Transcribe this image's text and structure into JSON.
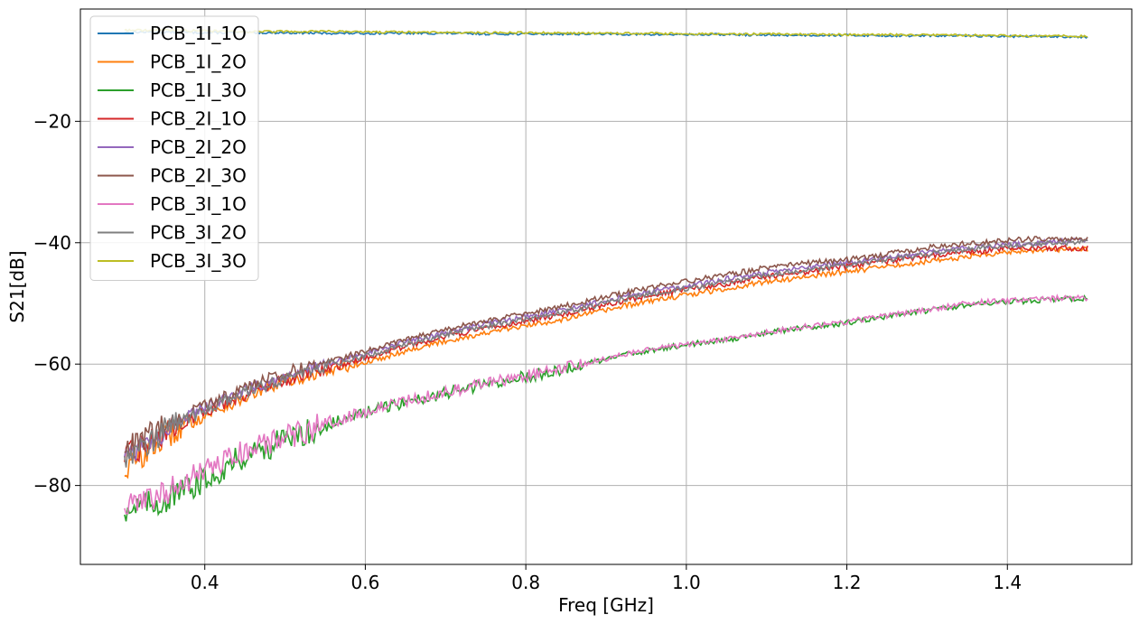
{
  "chart_data": {
    "type": "line",
    "xlabel": "Freq [GHz]",
    "ylabel": "S21[dB]",
    "xlim": [
      0.245,
      1.555
    ],
    "ylim": [
      -93,
      -1.5
    ],
    "xticks": [
      0.4,
      0.6,
      0.8,
      1.0,
      1.2,
      1.4
    ],
    "xtick_labels": [
      "0.4",
      "0.6",
      "0.8",
      "1.0",
      "1.2",
      "1.4"
    ],
    "yticks": [
      -20,
      -40,
      -60,
      -80
    ],
    "ytick_labels": [
      "−20",
      "−40",
      "−60",
      "−80"
    ],
    "grid": true,
    "legend_position": "top-left",
    "x": [
      0.3,
      0.35,
      0.4,
      0.45,
      0.5,
      0.55,
      0.6,
      0.65,
      0.7,
      0.75,
      0.8,
      0.85,
      0.9,
      0.95,
      1.0,
      1.05,
      1.1,
      1.15,
      1.2,
      1.25,
      1.3,
      1.35,
      1.4,
      1.45,
      1.5
    ],
    "series": [
      {
        "name": "PCB_1I_1O",
        "color": "#1f77b4",
        "values": [
          -5.3,
          -5.3,
          -5.4,
          -5.4,
          -5.4,
          -5.5,
          -5.5,
          -5.5,
          -5.5,
          -5.6,
          -5.6,
          -5.6,
          -5.6,
          -5.7,
          -5.7,
          -5.7,
          -5.8,
          -5.8,
          -5.8,
          -5.9,
          -5.9,
          -5.9,
          -6.0,
          -6.0,
          -6.1
        ]
      },
      {
        "name": "PCB_1I_2O",
        "color": "#ff7f0e",
        "values": [
          -77.5,
          -72.0,
          -68.5,
          -65.5,
          -63.0,
          -61.3,
          -59.8,
          -57.8,
          -56.2,
          -54.9,
          -53.7,
          -52.5,
          -51.1,
          -49.7,
          -48.6,
          -47.6,
          -46.4,
          -45.6,
          -44.7,
          -44.0,
          -43.1,
          -42.3,
          -41.5,
          -41.1,
          -41.0
        ]
      },
      {
        "name": "PCB_1I_3O",
        "color": "#2ca02c",
        "values": [
          -84.0,
          -82.5,
          -79.0,
          -75.0,
          -72.6,
          -70.1,
          -68.0,
          -66.2,
          -64.8,
          -63.3,
          -62.1,
          -60.7,
          -59.2,
          -57.8,
          -56.8,
          -56.0,
          -54.8,
          -53.9,
          -53.2,
          -52.2,
          -51.2,
          -50.2,
          -49.8,
          -49.4,
          -49.2
        ]
      },
      {
        "name": "PCB_2I_1O",
        "color": "#d62728",
        "values": [
          -75.5,
          -71.2,
          -67.8,
          -65.0,
          -62.6,
          -60.8,
          -59.0,
          -57.1,
          -55.4,
          -54.1,
          -52.9,
          -51.7,
          -50.3,
          -48.8,
          -47.8,
          -46.8,
          -45.6,
          -44.8,
          -43.9,
          -43.1,
          -42.2,
          -41.6,
          -41.0,
          -40.9,
          -40.9
        ]
      },
      {
        "name": "PCB_2I_2O",
        "color": "#9467bd",
        "values": [
          -74.8,
          -70.6,
          -67.3,
          -64.3,
          -61.9,
          -60.0,
          -58.3,
          -56.4,
          -54.8,
          -53.4,
          -52.2,
          -51.0,
          -49.5,
          -48.1,
          -47.1,
          -46.0,
          -44.9,
          -44.1,
          -43.3,
          -42.5,
          -41.6,
          -40.8,
          -40.3,
          -39.9,
          -39.6
        ]
      },
      {
        "name": "PCB_2I_3O",
        "color": "#8c564b",
        "values": [
          -74.3,
          -70.2,
          -66.8,
          -63.8,
          -61.4,
          -59.6,
          -57.9,
          -56.0,
          -54.3,
          -52.9,
          -51.7,
          -50.4,
          -48.9,
          -47.5,
          -46.4,
          -45.3,
          -44.1,
          -43.4,
          -42.8,
          -41.9,
          -40.8,
          -40.1,
          -39.6,
          -39.3,
          -39.4
        ]
      },
      {
        "name": "PCB_3I_1O",
        "color": "#e377c2",
        "values": [
          -83.6,
          -81.2,
          -77.6,
          -74.4,
          -72.2,
          -69.8,
          -67.8,
          -66.0,
          -64.7,
          -63.2,
          -62.0,
          -60.6,
          -59.1,
          -57.7,
          -56.7,
          -55.9,
          -54.7,
          -53.8,
          -53.0,
          -52.0,
          -51.1,
          -50.0,
          -49.5,
          -49.2,
          -49.1
        ]
      },
      {
        "name": "PCB_3I_2O",
        "color": "#7f7f7f",
        "values": [
          -75.2,
          -71.0,
          -67.6,
          -64.7,
          -62.3,
          -60.4,
          -58.7,
          -56.8,
          -55.1,
          -53.8,
          -52.6,
          -51.4,
          -49.9,
          -48.5,
          -47.5,
          -46.4,
          -45.3,
          -44.5,
          -43.7,
          -42.8,
          -41.9,
          -41.1,
          -40.5,
          -40.1,
          -39.8
        ]
      },
      {
        "name": "PCB_3I_3O",
        "color": "#bcbd22",
        "values": [
          -5.0,
          -5.0,
          -5.1,
          -5.2,
          -5.2,
          -5.2,
          -5.3,
          -5.3,
          -5.4,
          -5.4,
          -5.4,
          -5.5,
          -5.5,
          -5.5,
          -5.6,
          -5.6,
          -5.6,
          -5.7,
          -5.7,
          -5.7,
          -5.8,
          -5.8,
          -5.9,
          -5.9,
          -6.0
        ]
      }
    ]
  }
}
